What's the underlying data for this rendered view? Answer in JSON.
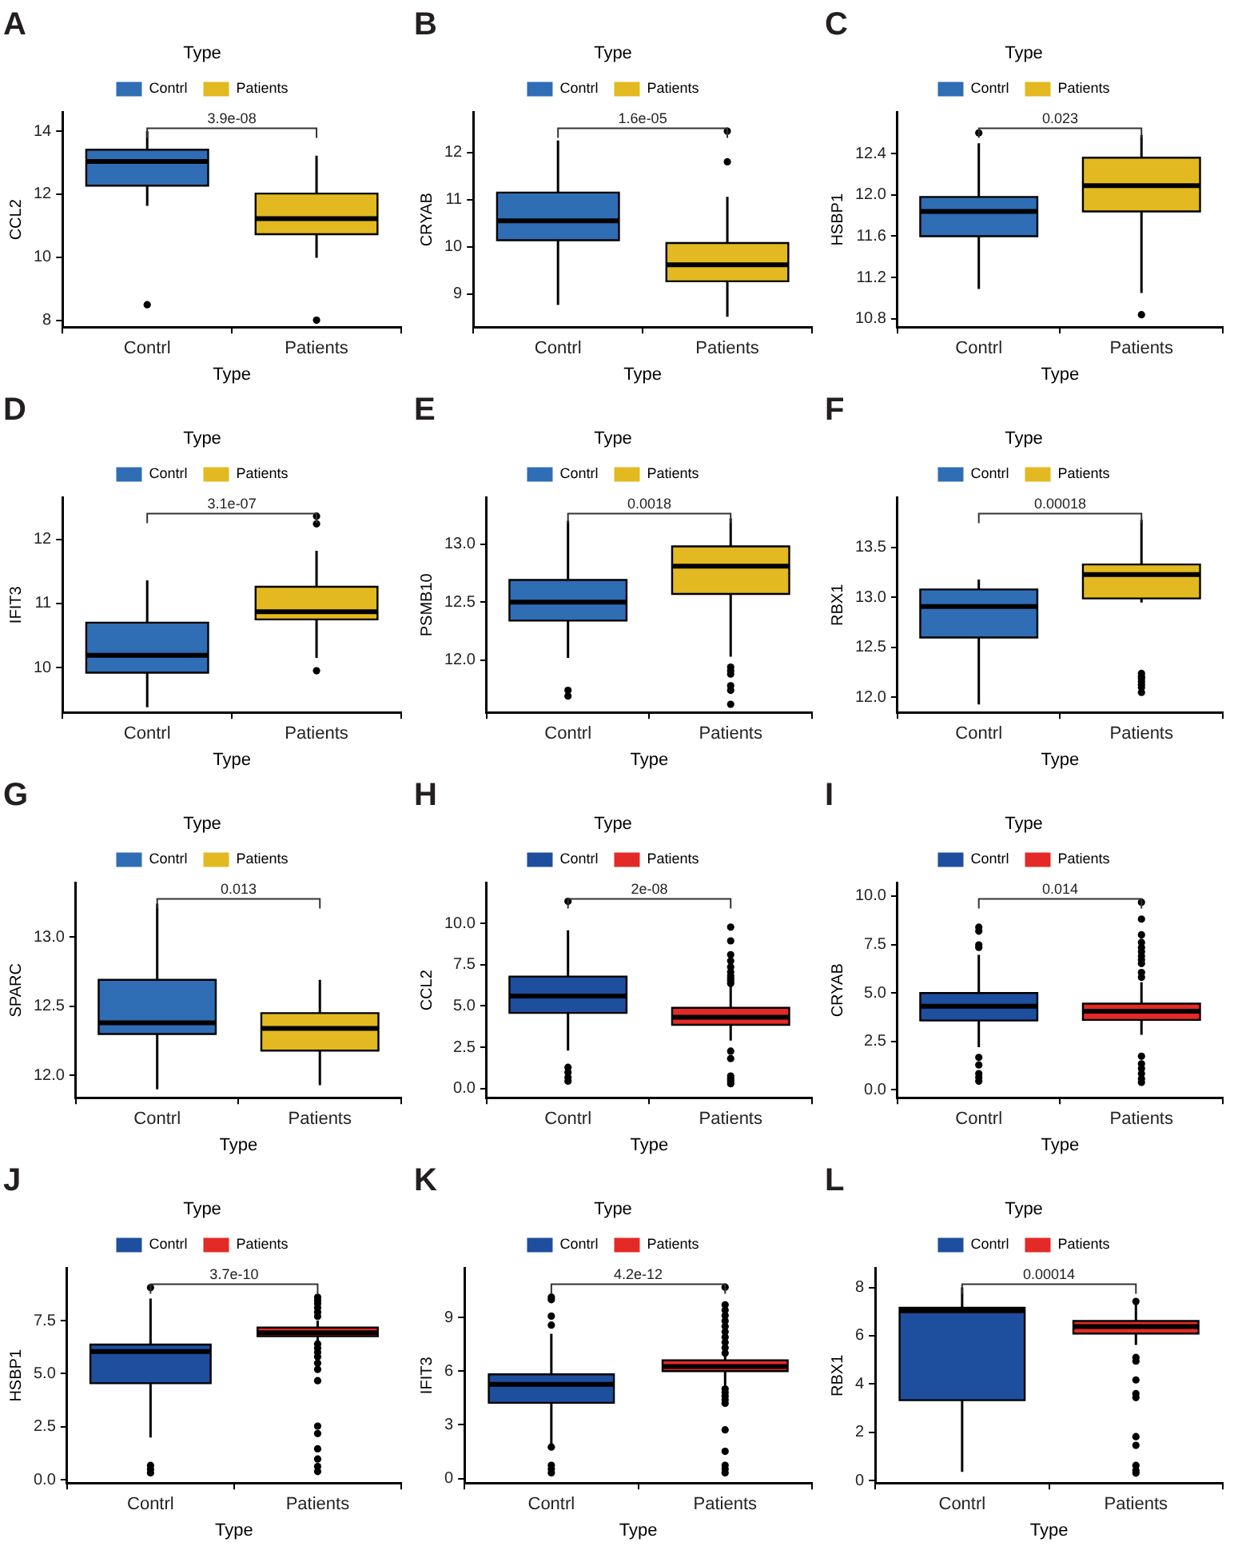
{
  "chart_data": [
    {
      "type": "box",
      "title": "A",
      "legend_title": "Type",
      "legend": "top",
      "xlabel": "Type",
      "ylabel": "CCL2",
      "categories": [
        "Contrl",
        "Patients"
      ],
      "ylim": [
        7.78,
        14.6
      ],
      "yticks": [
        8,
        10,
        12,
        14
      ],
      "annotations": [
        "3.9e-08"
      ],
      "series": [
        {
          "name": "Contrl",
          "color": "#2f6db5",
          "boxes": [
            {
              "low": 11.63,
              "q1": 12.27,
              "median": 13.04,
              "q3": 13.41,
              "high": 14.0,
              "outliers": [
                8.49
              ]
            },
            null
          ]
        },
        {
          "name": "Patients",
          "color": "#e2b920",
          "boxes": [
            null,
            {
              "low": 9.98,
              "q1": 10.73,
              "median": 11.22,
              "q3": 12.02,
              "high": 13.22,
              "outliers": [
                8.0
              ]
            }
          ]
        }
      ]
    },
    {
      "type": "box",
      "title": "B",
      "legend_title": "Type",
      "legend": "top",
      "xlabel": "Type",
      "ylabel": "CRYAB",
      "categories": [
        "Contrl",
        "Patients"
      ],
      "ylim": [
        8.3,
        12.85
      ],
      "yticks": [
        9,
        10,
        11,
        12
      ],
      "annotations": [
        "1.6e-05"
      ],
      "series": [
        {
          "name": "Contrl",
          "color": "#2f6db5",
          "boxes": [
            {
              "low": 8.77,
              "q1": 10.14,
              "median": 10.55,
              "q3": 11.15,
              "high": 12.25
            },
            null
          ]
        },
        {
          "name": "Patients",
          "color": "#e2b920",
          "boxes": [
            null,
            {
              "low": 8.52,
              "q1": 9.27,
              "median": 9.62,
              "q3": 10.08,
              "high": 11.06,
              "outliers": [
                12.45,
                11.8
              ]
            }
          ]
        }
      ]
    },
    {
      "type": "box",
      "title": "C",
      "legend_title": "Type",
      "legend": "top",
      "xlabel": "Type",
      "ylabel": "HSBP1",
      "categories": [
        "Contrl",
        "Patients"
      ],
      "ylim": [
        10.72,
        12.8
      ],
      "yticks": [
        10.8,
        11.2,
        11.6,
        {
          "value": 12,
          "label": "12.0"
        },
        12.4
      ],
      "annotations": [
        "0.023"
      ],
      "series": [
        {
          "name": "Contrl",
          "color": "#2f6db5",
          "boxes": [
            {
              "low": 11.09,
              "q1": 11.6,
              "median": 11.84,
              "q3": 11.98,
              "high": 12.5,
              "outliers": [
                12.6
              ]
            },
            null
          ]
        },
        {
          "name": "Patients",
          "color": "#e2b920",
          "boxes": [
            null,
            {
              "low": 11.05,
              "q1": 11.84,
              "median": 12.09,
              "q3": 12.36,
              "high": 12.58,
              "outliers": [
                10.84
              ]
            }
          ]
        }
      ]
    },
    {
      "type": "box",
      "title": "D",
      "legend_title": "Type",
      "legend": "top",
      "xlabel": "Type",
      "ylabel": "IFIT3",
      "categories": [
        "Contrl",
        "Patients"
      ],
      "ylim": [
        9.3,
        12.65
      ],
      "yticks": [
        10,
        11,
        12
      ],
      "annotations": [
        "3.1e-07"
      ],
      "series": [
        {
          "name": "Contrl",
          "color": "#2f6db5",
          "boxes": [
            {
              "low": 9.38,
              "q1": 9.92,
              "median": 10.19,
              "q3": 10.7,
              "high": 11.36
            },
            null
          ]
        },
        {
          "name": "Patients",
          "color": "#e2b920",
          "boxes": [
            null,
            {
              "low": 10.15,
              "q1": 10.75,
              "median": 10.87,
              "q3": 11.26,
              "high": 11.82,
              "outliers": [
                12.36,
                12.24,
                9.95
              ]
            }
          ]
        }
      ]
    },
    {
      "type": "box",
      "title": "E",
      "legend_title": "Type",
      "legend": "top",
      "xlabel": "Type",
      "ylabel": "PSMB10",
      "categories": [
        "Contrl",
        "Patients"
      ],
      "ylim": [
        11.55,
        13.4
      ],
      "yticks": [
        {
          "value": 12,
          "label": "12.0"
        },
        12.5,
        {
          "value": 13,
          "label": "13.0"
        }
      ],
      "annotations": [
        "0.0018"
      ],
      "series": [
        {
          "name": "Contrl",
          "color": "#2f6db5",
          "boxes": [
            {
              "low": 12.02,
              "q1": 12.34,
              "median": 12.5,
              "q3": 12.69,
              "high": 13.2,
              "outliers": [
                11.74,
                11.69
              ]
            },
            null
          ]
        },
        {
          "name": "Patients",
          "color": "#e2b920",
          "boxes": [
            null,
            {
              "low": 12.03,
              "q1": 12.57,
              "median": 12.81,
              "q3": 12.98,
              "high": 13.22,
              "outliers": [
                11.94,
                11.91,
                11.88,
                11.78,
                11.74,
                11.62
              ]
            }
          ]
        }
      ]
    },
    {
      "type": "box",
      "title": "F",
      "legend_title": "Type",
      "legend": "top",
      "xlabel": "Type",
      "ylabel": "RBX1",
      "categories": [
        "Contrl",
        "Patients"
      ],
      "ylim": [
        11.85,
        14.0
      ],
      "yticks": [
        {
          "value": 12,
          "label": "12.0"
        },
        12.5,
        {
          "value": 13,
          "label": "13.0"
        },
        13.5
      ],
      "annotations": [
        "0.00018"
      ],
      "series": [
        {
          "name": "Contrl",
          "color": "#2f6db5",
          "boxes": [
            {
              "low": 11.93,
              "q1": 12.6,
              "median": 12.91,
              "q3": 13.08,
              "high": 13.18
            },
            null
          ]
        },
        {
          "name": "Patients",
          "color": "#e2b920",
          "boxes": [
            null,
            {
              "low": 12.95,
              "q1": 12.99,
              "median": 13.23,
              "q3": 13.33,
              "high": 13.78,
              "outliers": [
                12.24,
                12.21,
                12.19,
                12.16,
                12.13,
                12.1,
                12.05
              ]
            }
          ]
        }
      ]
    },
    {
      "type": "box",
      "title": "G",
      "legend_title": "Type",
      "legend": "top",
      "xlabel": "Type",
      "ylabel": "SPARC",
      "categories": [
        "Contrl",
        "Patients"
      ],
      "ylim": [
        11.84,
        13.39
      ],
      "yticks": [
        {
          "value": 12,
          "label": "12.0"
        },
        12.5,
        {
          "value": 13,
          "label": "13.0"
        }
      ],
      "annotations": [
        "0.013"
      ],
      "series": [
        {
          "name": "Contrl",
          "color": "#2f6db5",
          "boxes": [
            {
              "low": 11.9,
              "q1": 12.3,
              "median": 12.38,
              "q3": 12.69,
              "high": 13.24
            },
            null
          ]
        },
        {
          "name": "Patients",
          "color": "#e2b920",
          "boxes": [
            null,
            {
              "low": 11.93,
              "q1": 12.18,
              "median": 12.34,
              "q3": 12.45,
              "high": 12.69
            }
          ]
        }
      ]
    },
    {
      "type": "box",
      "title": "H",
      "legend_title": "Type",
      "legend": "top",
      "xlabel": "Type",
      "ylabel": "CCL2",
      "categories": [
        "Contrl",
        "Patients"
      ],
      "ylim": [
        -0.55,
        12.45
      ],
      "yticks": [
        {
          "value": 0,
          "label": "0.0"
        },
        2.5,
        {
          "value": 5,
          "label": "5.0"
        },
        7.5,
        {
          "value": 10,
          "label": "10.0"
        }
      ],
      "annotations": [
        "2e-08"
      ],
      "series": [
        {
          "name": "Contrl",
          "color": "#1e4e9e",
          "boxes": [
            {
              "low": 2.3,
              "q1": 4.58,
              "median": 5.6,
              "q3": 6.78,
              "high": 9.58,
              "outliers": [
                11.33,
                1.29,
                0.98,
                0.68,
                0.45
              ]
            },
            null
          ]
        },
        {
          "name": "Patients",
          "color": "#e42a26",
          "boxes": [
            null,
            {
              "low": 2.9,
              "q1": 3.86,
              "median": 4.32,
              "q3": 4.89,
              "high": 6.2,
              "outliers": [
                9.77,
                8.94,
                8.1,
                7.73,
                7.35,
                7.05,
                6.82,
                6.67,
                6.52,
                6.36,
                2.27,
                1.82,
                0.76,
                0.61,
                0.45,
                0.3
              ]
            }
          ]
        }
      ]
    },
    {
      "type": "box",
      "title": "I",
      "legend_title": "Type",
      "legend": "top",
      "xlabel": "Type",
      "ylabel": "CRYAB",
      "categories": [
        "Contrl",
        "Patients"
      ],
      "ylim": [
        -0.4,
        10.68
      ],
      "yticks": [
        {
          "value": 0,
          "label": "0.0"
        },
        2.5,
        {
          "value": 5,
          "label": "5.0"
        },
        7.5,
        {
          "value": 10,
          "label": "10.0"
        }
      ],
      "annotations": [
        "0.014"
      ],
      "series": [
        {
          "name": "Contrl",
          "color": "#1e4e9e",
          "boxes": [
            {
              "low": 2.2,
              "q1": 3.58,
              "median": 4.32,
              "q3": 5.0,
              "high": 6.97,
              "outliers": [
                8.39,
                8.19,
                7.48,
                7.35,
                1.68,
                1.29,
                0.84,
                0.65,
                0.45
              ]
            },
            null
          ]
        },
        {
          "name": "Patients",
          "color": "#e42a26",
          "boxes": [
            null,
            {
              "low": 2.84,
              "q1": 3.61,
              "median": 4.06,
              "q3": 4.45,
              "high": 5.55,
              "outliers": [
                9.68,
                8.81,
                8.0,
                7.61,
                7.35,
                7.13,
                6.9,
                6.71,
                6.52,
                6.06,
                5.81,
                1.74,
                1.35,
                1.1,
                0.84,
                0.58,
                0.39
              ]
            }
          ]
        }
      ]
    },
    {
      "type": "box",
      "title": "J",
      "legend_title": "Type",
      "legend": "top",
      "xlabel": "Type",
      "ylabel": "HSBP1",
      "categories": [
        "Contrl",
        "Patients"
      ],
      "ylim": [
        -0.15,
        9.97
      ],
      "yticks": [
        {
          "value": 0,
          "label": "0.0"
        },
        2.5,
        {
          "value": 5,
          "label": "5.0"
        },
        7.5
      ],
      "annotations": [
        "3.7e-10"
      ],
      "series": [
        {
          "name": "Contrl",
          "color": "#1e4e9e",
          "boxes": [
            {
              "low": 1.99,
              "q1": 4.55,
              "median": 6.04,
              "q3": 6.37,
              "high": 8.54,
              "outliers": [
                9.05,
                0.68,
                0.5,
                0.33
              ]
            },
            null
          ]
        },
        {
          "name": "Patients",
          "color": "#e42a26",
          "boxes": [
            null,
            {
              "low": 6.5,
              "q1": 6.76,
              "median": 6.93,
              "q3": 7.17,
              "high": 7.5,
              "outliers": [
                8.6,
                8.45,
                8.3,
                8.1,
                7.9,
                7.7,
                6.4,
                6.2,
                6.0,
                5.8,
                5.5,
                5.2,
                4.67,
                2.53,
                2.18,
                1.46,
                0.98,
                0.63,
                0.39
              ]
            }
          ]
        }
      ]
    },
    {
      "type": "box",
      "title": "K",
      "legend_title": "Type",
      "legend": "top",
      "xlabel": "Type",
      "ylabel": "IFIT3",
      "categories": [
        "Contrl",
        "Patients"
      ],
      "ylim": [
        -0.25,
        11.75
      ],
      "yticks": [
        0,
        3,
        6,
        9
      ],
      "annotations": [
        "4.2e-12"
      ],
      "series": [
        {
          "name": "Contrl",
          "color": "#1e4e9e",
          "boxes": [
            {
              "low": 1.94,
              "q1": 4.23,
              "median": 5.26,
              "q3": 5.82,
              "high": 8.08,
              "outliers": [
                10.13,
                9.99,
                9.07,
                8.57,
                1.76,
                0.74,
                0.53,
                0.32
              ]
            },
            null
          ]
        },
        {
          "name": "Patients",
          "color": "#e42a26",
          "boxes": [
            null,
            {
              "low": 5.2,
              "q1": 6.0,
              "median": 6.25,
              "q3": 6.6,
              "high": 6.9,
              "outliers": [
                10.69,
                9.7,
                9.4,
                9.1,
                8.8,
                8.5,
                8.2,
                7.9,
                7.6,
                7.3,
                7.0,
                5.0,
                4.8,
                4.6,
                4.4,
                4.2,
                2.72,
                1.52,
                0.74,
                0.53,
                0.32
              ]
            }
          ]
        }
      ]
    },
    {
      "type": "box",
      "title": "L",
      "legend_title": "Type",
      "legend": "top",
      "xlabel": "Type",
      "ylabel": "RBX1",
      "categories": [
        "Contrl",
        "Patients"
      ],
      "ylim": [
        -0.1,
        8.8
      ],
      "yticks": [
        0,
        2,
        4,
        6,
        8
      ],
      "annotations": [
        "0.00014"
      ],
      "series": [
        {
          "name": "Contrl",
          "color": "#1e4e9e",
          "boxes": [
            {
              "low": 0.36,
              "q1": 3.33,
              "median": 7.03,
              "q3": 7.16,
              "high": 8.0
            },
            null
          ]
        },
        {
          "name": "Patients",
          "color": "#e42a26",
          "boxes": [
            null,
            {
              "low": 5.62,
              "q1": 6.09,
              "median": 6.38,
              "q3": 6.61,
              "high": 7.3,
              "outliers": [
                7.42,
                5.1,
                4.95,
                4.17,
                3.6,
                3.44,
                1.82,
                1.46,
                0.63,
                0.42,
                0.31
              ]
            }
          ]
        }
      ]
    }
  ]
}
